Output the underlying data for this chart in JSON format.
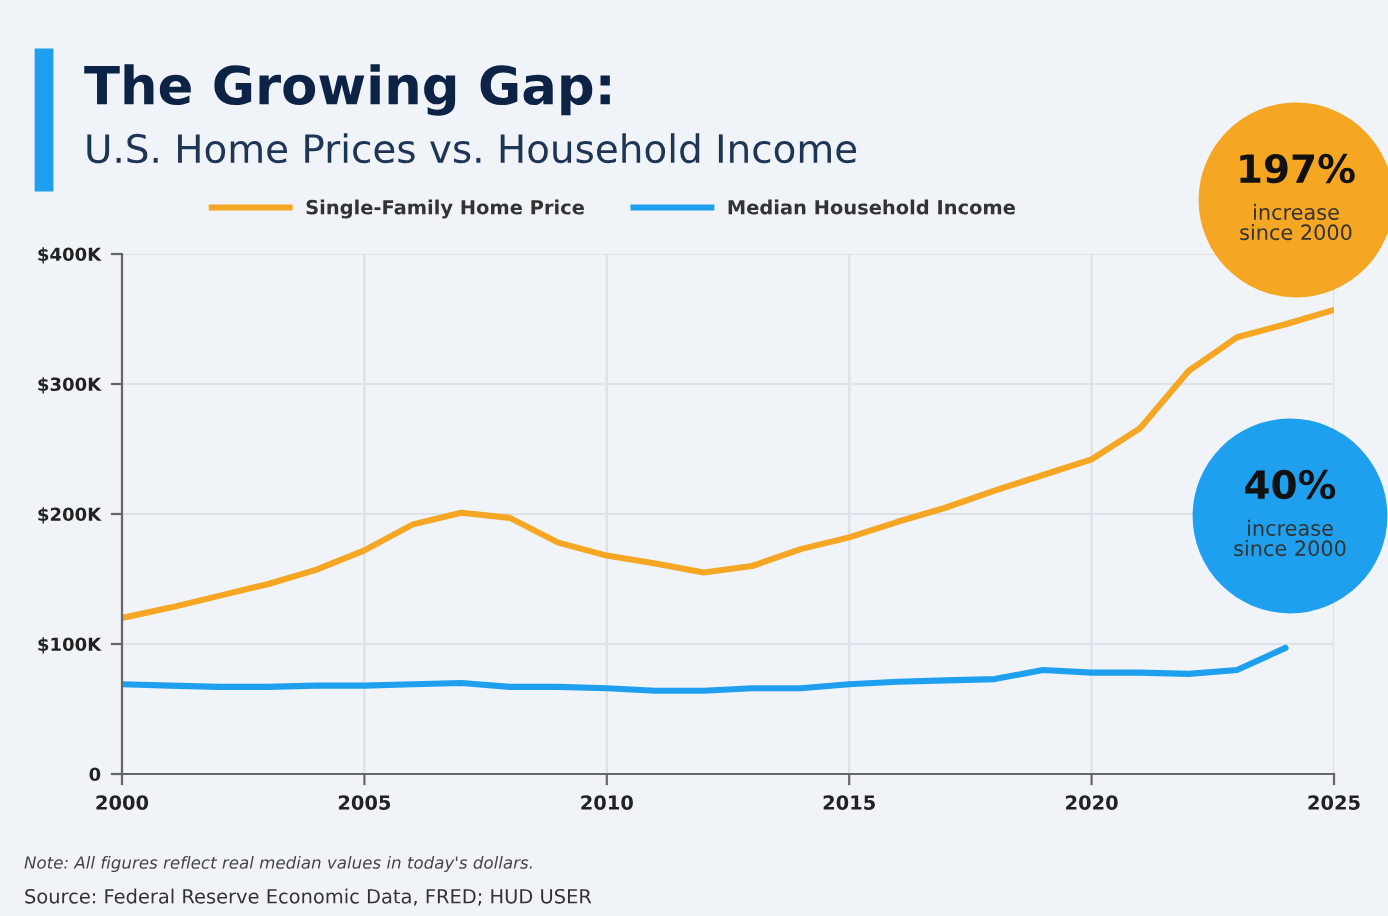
{
  "chart_data": {
    "type": "line",
    "title": "The Growing Gap:",
    "subtitle": "U.S. Home Prices vs. Household Income",
    "x": [
      2000,
      2001,
      2002,
      2003,
      2004,
      2005,
      2006,
      2007,
      2008,
      2009,
      2010,
      2011,
      2012,
      2013,
      2014,
      2015,
      2016,
      2017,
      2018,
      2019,
      2020,
      2021,
      2022,
      2023,
      2024,
      2025
    ],
    "series": [
      {
        "name": "Single-Family Home Price",
        "color": "#f5a623",
        "values": [
          120000,
          128000,
          137000,
          146000,
          157000,
          172000,
          192000,
          201000,
          197000,
          178000,
          168000,
          162000,
          155000,
          160000,
          173000,
          182000,
          194000,
          205000,
          218000,
          230000,
          242000,
          266000,
          310000,
          336000,
          346000,
          357000
        ]
      },
      {
        "name": "Median Household Income",
        "color": "#1ea0ee",
        "values": [
          69000,
          68000,
          67000,
          67000,
          68000,
          68000,
          69000,
          70000,
          67000,
          67000,
          66000,
          64000,
          64000,
          66000,
          66000,
          69000,
          71000,
          72000,
          73000,
          80000,
          78000,
          78000,
          77000,
          80000,
          97000,
          null
        ]
      }
    ],
    "xlim": [
      2000,
      2025
    ],
    "xticks": [
      2000,
      2005,
      2010,
      2015,
      2020,
      2025
    ],
    "ylim": [
      0,
      400000
    ],
    "yticks": [
      {
        "value": 0,
        "label": "0"
      },
      {
        "value": 100000,
        "label": "$100K"
      },
      {
        "value": 200000,
        "label": "$200K"
      },
      {
        "value": 300000,
        "label": "$300K"
      },
      {
        "value": 400000,
        "label": "$400K"
      }
    ],
    "grid": true,
    "legend": "top",
    "marker": "none",
    "line_style": "solid",
    "annotations": [
      "197%\nincrease\nsince 2000",
      "40%\nincrease\nsince 2000",
      "Note: All figures reflect real median values in today's dollars.",
      "Source: Federal Reserve Economic Data, FRED; HUD USER"
    ]
  }
}
